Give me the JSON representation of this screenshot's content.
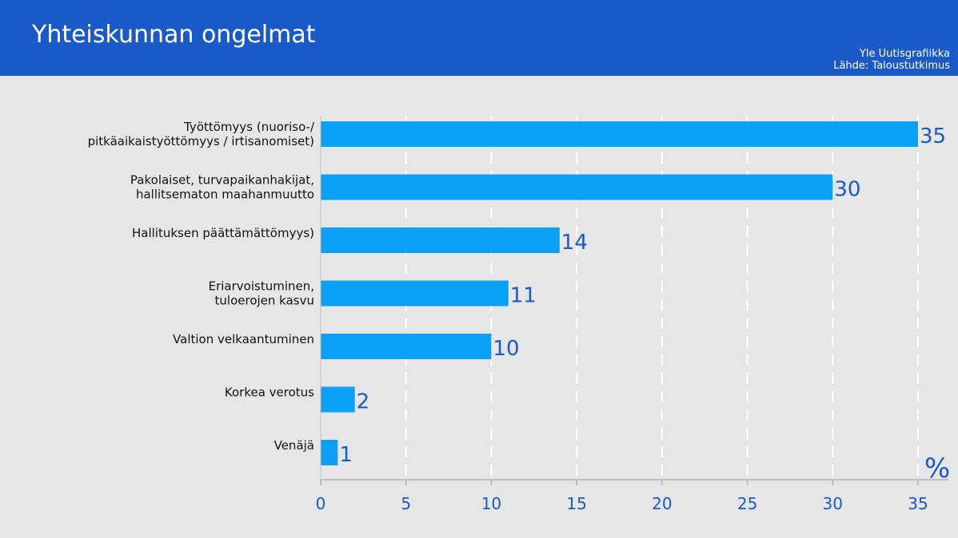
{
  "header": {
    "title": "Yhteiskunnan ongelmat",
    "credit_line1": "Yle Uutisgrafiikka",
    "credit_line2": "Lähde: Taloustutkimus"
  },
  "colors": {
    "header_bg": "#1a5ac8",
    "bar": "#0aa0f5",
    "value_text": "#1a5ac8",
    "background": "#e6e6e6"
  },
  "chart_data": {
    "type": "bar",
    "orientation": "horizontal",
    "categories": [
      [
        "Työttömyys (nuoriso-/",
        "pitkäaikaistyöttömyys / irtisanomiset)"
      ],
      [
        "Pakolaiset, turvapaikanhakijat,",
        "hallitsematon maahanmuutto"
      ],
      [
        "Hallituksen päättämättömyys)"
      ],
      [
        "Eriarvoistuminen,",
        "tuloerojen kasvu"
      ],
      [
        "Valtion velkaantuminen"
      ],
      [
        "Korkea verotus"
      ],
      [
        "Venäjä"
      ]
    ],
    "values": [
      35,
      30,
      14,
      11,
      10,
      2,
      1
    ],
    "xlim": [
      0,
      35
    ],
    "xticks": [
      0,
      5,
      10,
      15,
      20,
      25,
      30,
      35
    ],
    "unit": "%",
    "grid": "vertical-dashed"
  }
}
